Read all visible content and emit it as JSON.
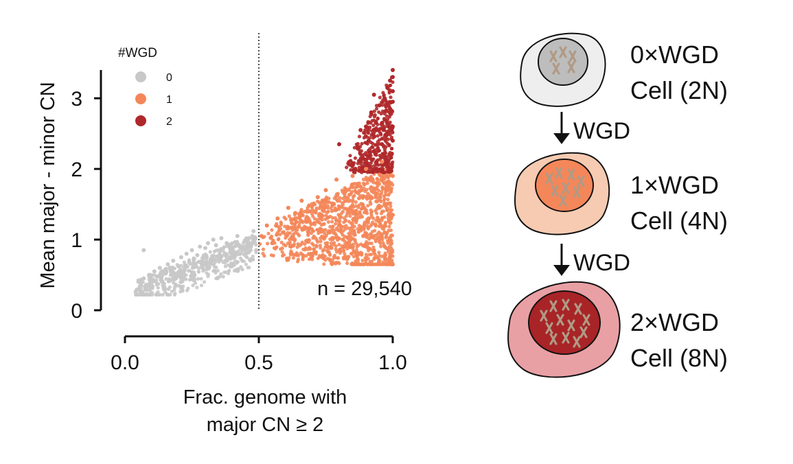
{
  "chart_data": {
    "type": "scatter",
    "title": "",
    "xlabel_line1": "Frac. genome with",
    "xlabel_line2": "major CN ≥ 2",
    "ylabel": "Mean major - minor CN",
    "xlim": [
      0.0,
      1.0
    ],
    "ylim": [
      0.0,
      3.4
    ],
    "xticks": [
      "0.0",
      "0.5",
      "1.0"
    ],
    "xtick_values": [
      0.0,
      0.5,
      1.0
    ],
    "yticks": [
      "0",
      "1",
      "2",
      "3"
    ],
    "ytick_values": [
      0,
      1,
      2,
      3
    ],
    "threshold_line_x": 0.5,
    "annotation": "n = 29,540",
    "legend": {
      "title": "#WGD",
      "placement": "top-left",
      "entries": [
        {
          "label": "0",
          "color": "#c8c8c8"
        },
        {
          "label": "1",
          "color": "#f4875a"
        },
        {
          "label": "2",
          "color": "#b0282a"
        }
      ]
    },
    "series": [
      {
        "name": "0",
        "color": "#c8c8c8",
        "points": [
          [
            0.04,
            0.26
          ],
          [
            0.05,
            0.3
          ],
          [
            0.06,
            0.38
          ],
          [
            0.07,
            0.45
          ],
          [
            0.08,
            0.35
          ],
          [
            0.09,
            0.5
          ],
          [
            0.1,
            0.42
          ],
          [
            0.11,
            0.55
          ],
          [
            0.12,
            0.48
          ],
          [
            0.13,
            0.6
          ],
          [
            0.14,
            0.4
          ],
          [
            0.15,
            0.52
          ],
          [
            0.16,
            0.65
          ],
          [
            0.17,
            0.58
          ],
          [
            0.18,
            0.7
          ],
          [
            0.19,
            0.45
          ],
          [
            0.2,
            0.62
          ],
          [
            0.21,
            0.75
          ],
          [
            0.22,
            0.55
          ],
          [
            0.23,
            0.8
          ],
          [
            0.24,
            0.68
          ],
          [
            0.25,
            0.85
          ],
          [
            0.26,
            0.5
          ],
          [
            0.27,
            0.78
          ],
          [
            0.28,
            0.9
          ],
          [
            0.29,
            0.6
          ],
          [
            0.3,
            0.88
          ],
          [
            0.31,
            0.95
          ],
          [
            0.32,
            0.72
          ],
          [
            0.33,
            1.0
          ],
          [
            0.34,
            0.92
          ],
          [
            0.36,
            1.02
          ],
          [
            0.38,
            0.95
          ],
          [
            0.4,
            0.88
          ],
          [
            0.42,
            1.05
          ],
          [
            0.45,
            0.98
          ],
          [
            0.47,
            0.9
          ],
          [
            0.48,
            1.12
          ],
          [
            0.49,
            0.85
          ],
          [
            0.07,
            0.85
          ]
        ]
      },
      {
        "name": "1",
        "color": "#f4875a",
        "points": [
          [
            0.51,
            1.05
          ],
          [
            0.53,
            1.2
          ],
          [
            0.55,
            0.95
          ],
          [
            0.57,
            1.3
          ],
          [
            0.59,
            1.1
          ],
          [
            0.61,
            1.45
          ],
          [
            0.62,
            0.9
          ],
          [
            0.64,
            1.25
          ],
          [
            0.66,
            1.55
          ],
          [
            0.67,
            1.15
          ],
          [
            0.69,
            1.4
          ],
          [
            0.7,
            0.8
          ],
          [
            0.72,
            1.6
          ],
          [
            0.73,
            1.3
          ],
          [
            0.75,
            1.7
          ],
          [
            0.76,
            1.1
          ],
          [
            0.78,
            1.5
          ],
          [
            0.79,
            1.85
          ],
          [
            0.8,
            1.2
          ],
          [
            0.82,
            1.65
          ],
          [
            0.83,
            0.95
          ],
          [
            0.85,
            1.9
          ],
          [
            0.86,
            1.4
          ],
          [
            0.88,
            1.75
          ],
          [
            0.89,
            1.05
          ],
          [
            0.9,
            2.0
          ],
          [
            0.91,
            1.3
          ],
          [
            0.92,
            1.6
          ],
          [
            0.93,
            0.85
          ],
          [
            0.94,
            1.8
          ],
          [
            0.95,
            1.45
          ],
          [
            0.96,
            2.1
          ],
          [
            0.97,
            1.1
          ],
          [
            0.98,
            1.7
          ],
          [
            0.99,
            0.75
          ],
          [
            1.0,
            1.9
          ],
          [
            1.0,
            0.65
          ],
          [
            1.0,
            1.35
          ],
          [
            0.99,
            2.2
          ],
          [
            0.97,
            0.9
          ]
        ]
      },
      {
        "name": "2",
        "color": "#b0282a",
        "points": [
          [
            0.85,
            2.05
          ],
          [
            0.87,
            2.3
          ],
          [
            0.89,
            2.15
          ],
          [
            0.9,
            2.6
          ],
          [
            0.91,
            2.4
          ],
          [
            0.92,
            2.8
          ],
          [
            0.93,
            2.25
          ],
          [
            0.94,
            2.55
          ],
          [
            0.95,
            2.9
          ],
          [
            0.96,
            2.35
          ],
          [
            0.97,
            3.0
          ],
          [
            0.97,
            2.7
          ],
          [
            0.98,
            2.5
          ],
          [
            0.98,
            3.15
          ],
          [
            0.99,
            2.2
          ],
          [
            0.99,
            2.85
          ],
          [
            1.0,
            3.4
          ],
          [
            1.0,
            3.3
          ],
          [
            1.0,
            2.95
          ],
          [
            1.0,
            2.6
          ],
          [
            1.0,
            3.1
          ],
          [
            1.0,
            2.4
          ],
          [
            0.99,
            3.25
          ],
          [
            0.98,
            2.1
          ],
          [
            0.96,
            2.65
          ],
          [
            0.94,
            2.1
          ],
          [
            0.88,
            2.55
          ],
          [
            0.86,
            2.0
          ],
          [
            0.93,
            3.05
          ],
          [
            0.8,
            2.35
          ]
        ]
      }
    ]
  },
  "diagram": {
    "cells": [
      {
        "line1": "0×WGD",
        "line2": "Cell (2N)",
        "outer_color": "#eeeeee",
        "inner_color": "#bdbdbd",
        "chromosomes": 5
      },
      {
        "line1": "1×WGD",
        "line2": "Cell (4N)",
        "outer_color": "#f6cbb2",
        "inner_color": "#f4875a",
        "chromosomes": 8
      },
      {
        "line1": "2×WGD",
        "line2": "Cell (8N)",
        "outer_color": "#e8a0a4",
        "inner_color": "#a82427",
        "chromosomes": 12
      }
    ],
    "arrows": [
      {
        "label": "WGD"
      },
      {
        "label": "WGD"
      }
    ],
    "chromosome_color": "#b09a85"
  }
}
